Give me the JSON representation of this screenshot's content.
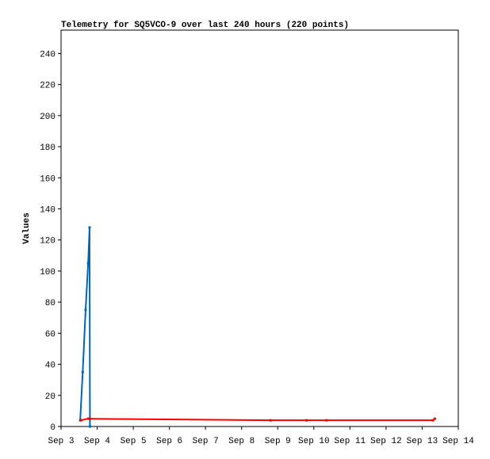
{
  "chart_data": {
    "type": "line",
    "title": "Telemetry for SQ5VCO-9 over last 240 hours (220 points)",
    "y_label": "Values",
    "xlim": [
      3,
      14
    ],
    "xticks": [
      {
        "value": 3,
        "label": "Sep 3"
      },
      {
        "value": 4,
        "label": "Sep 4"
      },
      {
        "value": 5,
        "label": "Sep 5"
      },
      {
        "value": 6,
        "label": "Sep 6"
      },
      {
        "value": 7,
        "label": "Sep 7"
      },
      {
        "value": 8,
        "label": "Sep 8"
      },
      {
        "value": 9,
        "label": "Sep 9"
      },
      {
        "value": 10,
        "label": "Sep 10"
      },
      {
        "value": 11,
        "label": "Sep 11"
      },
      {
        "value": 12,
        "label": "Sep 12"
      },
      {
        "value": 13,
        "label": "Sep 13"
      },
      {
        "value": 14,
        "label": "Sep 14"
      }
    ],
    "ylim": [
      0,
      255
    ],
    "yticks": [
      0,
      20,
      40,
      60,
      80,
      100,
      120,
      140,
      160,
      180,
      200,
      220,
      240
    ],
    "series": [
      {
        "color": "#0066b3",
        "x": [
          3.53,
          3.6,
          3.68,
          3.75,
          3.79,
          3.8
        ],
        "values": [
          4,
          35,
          75,
          105,
          128,
          0
        ]
      },
      {
        "color": "#ff0000",
        "x": [
          3.55,
          3.75,
          3.8,
          8.8,
          9.8,
          10.35,
          13.3,
          13.35
        ],
        "values": [
          4,
          5,
          5,
          4,
          4,
          4,
          4,
          5
        ]
      }
    ]
  }
}
